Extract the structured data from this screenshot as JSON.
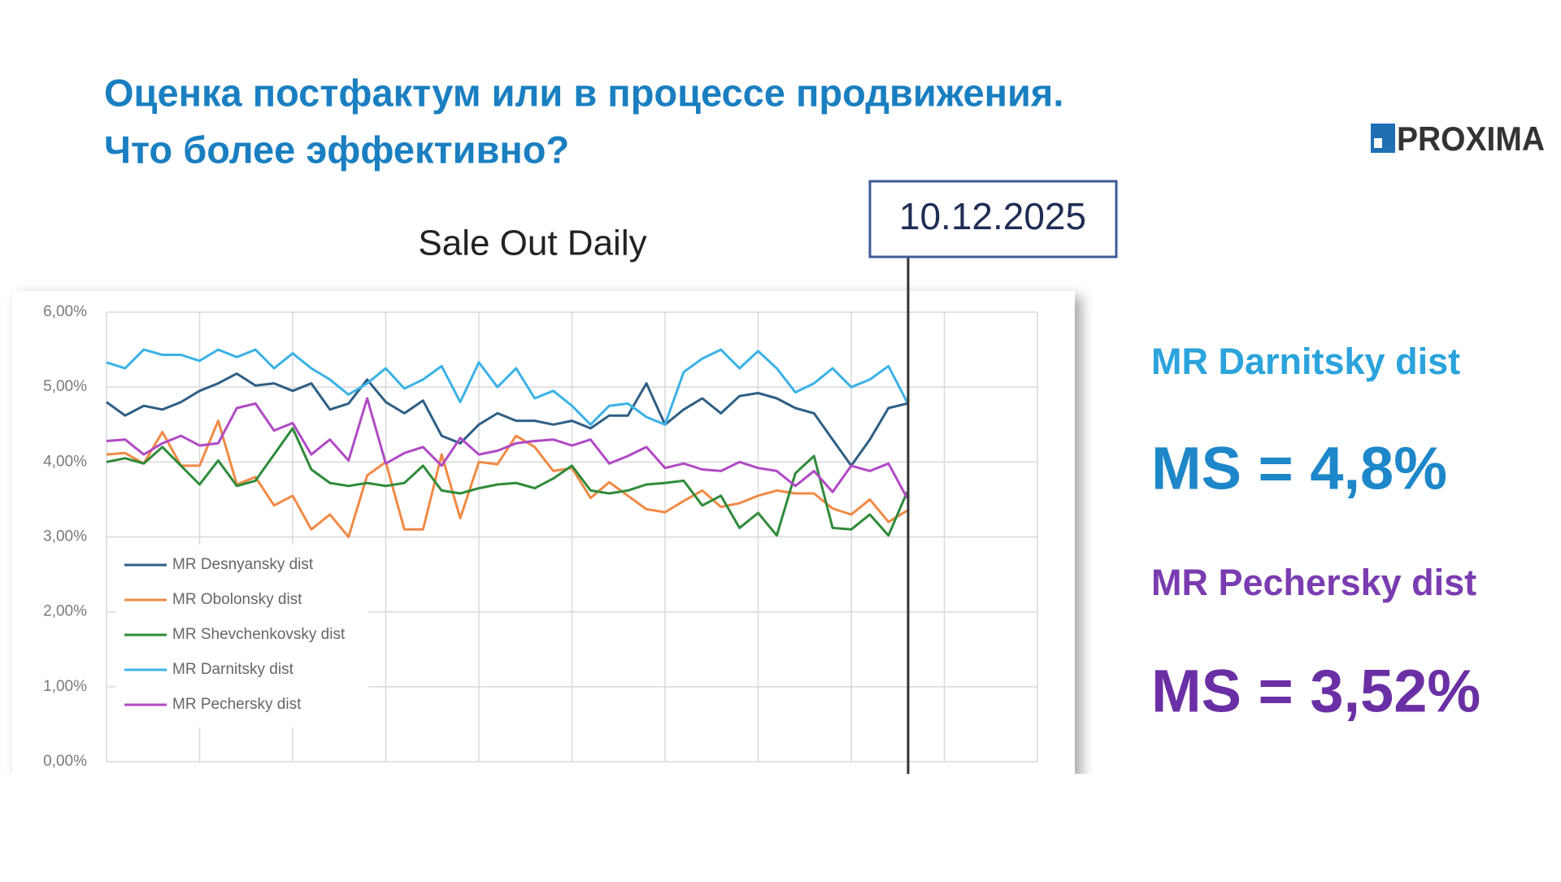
{
  "header": {
    "title_lines": [
      "Оценка постфактум или в процессе продвижения.",
      "Что более эффективно?"
    ],
    "logo": "PROXIMA"
  },
  "annotation": {
    "date": "10.12.2025"
  },
  "side_panel": {
    "items": [
      {
        "label": "MR Darnitsky dist",
        "metric": "MS = 4,8%"
      },
      {
        "label": "MR Pechersky dist",
        "metric": "MS = 3,52%"
      }
    ]
  },
  "chart_data": {
    "type": "line",
    "title": "Sale Out Daily",
    "categories": [
      null,
      null,
      null,
      null,
      null,
      null,
      null,
      null,
      null,
      null,
      null,
      null,
      null,
      null,
      null,
      null,
      null,
      null,
      null,
      null,
      null,
      null,
      null,
      null,
      null,
      null,
      null,
      null,
      null,
      null,
      null,
      null,
      null,
      null,
      null,
      null,
      null,
      null,
      null,
      null,
      null,
      null,
      null,
      null,
      null,
      null,
      null,
      null,
      null,
      null,
      null
    ],
    "ylim": [
      0,
      6
    ],
    "yticks": [
      {
        "value": 0,
        "label": "0,00%"
      },
      {
        "value": 1,
        "label": "1,00%"
      },
      {
        "value": 2,
        "label": "2,00%"
      },
      {
        "value": 3,
        "label": "3,00%"
      },
      {
        "value": 4,
        "label": "4,00%"
      },
      {
        "value": 5,
        "label": "5,00%"
      },
      {
        "value": 6,
        "label": "6,00%"
      }
    ],
    "grid": true,
    "legend": "lower left",
    "series": [
      {
        "name": "MR Desnyansky dist",
        "color": "#2e5f86",
        "values": [
          4.8,
          4.62,
          4.75,
          4.7,
          4.8,
          4.95,
          5.05,
          5.18,
          5.02,
          5.05,
          4.95,
          5.05,
          4.7,
          4.78,
          5.1,
          4.8,
          4.65,
          4.82,
          4.35,
          4.25,
          4.5,
          4.65,
          4.55,
          4.55,
          4.5,
          4.55,
          4.45,
          4.62,
          4.62,
          5.05,
          4.5,
          4.7,
          4.85,
          4.65,
          4.88,
          4.92,
          4.85,
          4.72,
          4.65,
          4.3,
          3.95,
          4.3,
          4.72,
          4.78,
          null,
          null,
          null,
          null,
          null,
          null,
          null
        ]
      },
      {
        "name": "MR Obolonsky dist",
        "color": "#f08a45",
        "values": [
          4.1,
          4.12,
          3.98,
          4.4,
          3.95,
          3.95,
          4.55,
          3.7,
          3.8,
          3.42,
          3.55,
          3.1,
          3.3,
          3.0,
          3.82,
          4.0,
          3.1,
          3.1,
          4.1,
          3.25,
          4.0,
          3.97,
          4.35,
          4.2,
          3.88,
          3.92,
          3.52,
          3.73,
          3.55,
          3.37,
          3.33,
          3.48,
          3.62,
          3.4,
          3.45,
          3.55,
          3.62,
          3.58,
          3.58,
          3.38,
          3.3,
          3.5,
          3.2,
          3.35,
          null,
          null,
          null,
          null,
          null,
          null,
          null
        ]
      },
      {
        "name": "MR Shevchenkovsky dist",
        "color": "#2e8b3a",
        "values": [
          4.0,
          4.05,
          3.98,
          4.2,
          3.95,
          3.7,
          4.02,
          3.68,
          3.75,
          4.1,
          4.45,
          3.9,
          3.72,
          3.68,
          3.72,
          3.68,
          3.72,
          3.95,
          3.62,
          3.58,
          3.65,
          3.7,
          3.72,
          3.65,
          3.78,
          3.95,
          3.62,
          3.58,
          3.62,
          3.7,
          3.72,
          3.75,
          3.42,
          3.55,
          3.12,
          3.32,
          3.02,
          3.85,
          4.08,
          3.12,
          3.1,
          3.3,
          3.02,
          3.6,
          null,
          null,
          null,
          null,
          null,
          null,
          null
        ]
      },
      {
        "name": "MR Darnitsky dist",
        "color": "#3bb2e6",
        "values": [
          5.33,
          5.25,
          5.5,
          5.43,
          5.43,
          5.35,
          5.5,
          5.4,
          5.5,
          5.25,
          5.45,
          5.25,
          5.1,
          4.9,
          5.05,
          5.25,
          4.98,
          5.1,
          5.28,
          4.8,
          5.33,
          5.0,
          5.25,
          4.85,
          4.95,
          4.75,
          4.5,
          4.75,
          4.78,
          4.6,
          4.5,
          5.2,
          5.38,
          5.5,
          5.25,
          5.48,
          5.25,
          4.93,
          5.05,
          5.25,
          5.0,
          5.1,
          5.28,
          4.8,
          null,
          null,
          null,
          null,
          null,
          null,
          null
        ]
      },
      {
        "name": "MR Pechersky dist",
        "color": "#b04ac4",
        "values": [
          4.28,
          4.3,
          4.1,
          4.25,
          4.35,
          4.22,
          4.25,
          4.72,
          4.78,
          4.42,
          4.52,
          4.1,
          4.3,
          4.02,
          4.85,
          3.98,
          4.12,
          4.2,
          3.95,
          4.32,
          4.1,
          4.15,
          4.25,
          4.28,
          4.3,
          4.22,
          4.3,
          3.98,
          4.08,
          4.2,
          3.92,
          3.98,
          3.9,
          3.88,
          4.0,
          3.92,
          3.88,
          3.68,
          3.88,
          3.6,
          3.95,
          3.88,
          3.98,
          3.52,
          null,
          null,
          null,
          null,
          null,
          null,
          null
        ]
      }
    ]
  }
}
